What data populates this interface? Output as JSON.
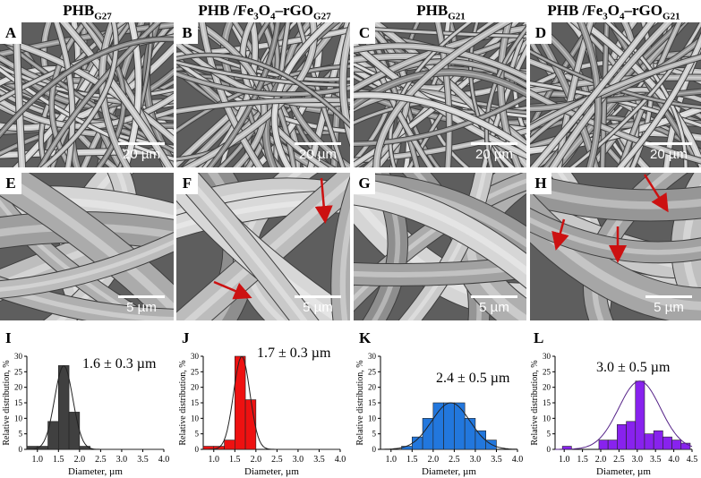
{
  "columns": [
    {
      "base": "PHB",
      "composite": "",
      "sub": "G27"
    },
    {
      "base": "PHB /Fe",
      "composite": "3",
      "mid": "O",
      "sub2": "4",
      "tail": "–rGO",
      "sub": "G27"
    },
    {
      "base": "PHB",
      "composite": "",
      "sub": "G21"
    },
    {
      "base": "PHB /Fe",
      "composite": "3",
      "mid": "O",
      "sub2": "4",
      "tail": "–rGO",
      "sub": "G21"
    }
  ],
  "sem_top": [
    {
      "letter": "A",
      "scale": "20 µm"
    },
    {
      "letter": "B",
      "scale": "20 µm"
    },
    {
      "letter": "C",
      "scale": "20 µm"
    },
    {
      "letter": "D",
      "scale": "20 µm"
    }
  ],
  "sem_bottom": [
    {
      "letter": "E",
      "scale": "5 µm"
    },
    {
      "letter": "F",
      "scale": "5 µm"
    },
    {
      "letter": "G",
      "scale": "5 µm"
    },
    {
      "letter": "H",
      "scale": "5 µm"
    }
  ],
  "colors": {
    "I": "#404040",
    "J": "#ee1111",
    "K": "#2277dd",
    "L": "#8822ee",
    "arrow": "#cc1111"
  },
  "chart_data": [
    {
      "type": "bar",
      "letter": "I",
      "annotation": "1.6 ± 0.3 µm",
      "xlabel": "Diameter, µm",
      "ylabel": "Relative distribution, %",
      "bin_width": 0.25,
      "x": [
        0.75,
        1.0,
        1.25,
        1.5,
        1.75,
        2.0,
        2.25
      ],
      "values": [
        1,
        1,
        9,
        27,
        12,
        1,
        0
      ],
      "xticks": [
        "1.0",
        "1.5",
        "2.0",
        "2.5",
        "3.0",
        "3.5",
        "4.0"
      ],
      "xlim": [
        0.75,
        4.0
      ],
      "ylim": [
        0,
        30
      ],
      "yticks": [
        "0",
        "5",
        "10",
        "15",
        "20",
        "25",
        "30"
      ]
    },
    {
      "type": "bar",
      "letter": "J",
      "annotation": "1.7 ± 0.3 µm",
      "xlabel": "Diameter, µm",
      "ylabel": "Relative distribution, %",
      "bin_width": 0.25,
      "x": [
        0.75,
        1.0,
        1.25,
        1.5,
        1.75,
        2.0
      ],
      "values": [
        1,
        1,
        3,
        30,
        16,
        0
      ],
      "xticks": [
        "1.0",
        "1.5",
        "2.0",
        "2.5",
        "3.0",
        "3.5",
        "4.0"
      ],
      "xlim": [
        0.75,
        4.0
      ],
      "ylim": [
        0,
        30
      ],
      "yticks": [
        "0",
        "5",
        "10",
        "15",
        "20",
        "25",
        "30"
      ]
    },
    {
      "type": "bar",
      "letter": "K",
      "annotation": "2.4 ± 0.5 µm",
      "xlabel": "Diameter, µm",
      "ylabel": "Relative distribution, %",
      "bin_width": 0.25,
      "x": [
        1.25,
        1.5,
        1.75,
        2.0,
        2.25,
        2.5,
        2.75,
        3.0,
        3.25
      ],
      "values": [
        1,
        4,
        10,
        15,
        15,
        15,
        10,
        6,
        3
      ],
      "xticks": [
        "1.0",
        "1.5",
        "2.0",
        "2.5",
        "3.0",
        "3.5",
        "4.0"
      ],
      "xlim": [
        0.75,
        4.0
      ],
      "ylim": [
        0,
        30
      ],
      "yticks": [
        "0",
        "5",
        "10",
        "15",
        "20",
        "25",
        "30"
      ]
    },
    {
      "type": "bar",
      "letter": "L",
      "annotation": "3.0 ± 0.5 µm",
      "xlabel": "Diameter, µm",
      "ylabel": "Relative distribution, %",
      "bin_width": 0.25,
      "x": [
        0.95,
        1.2,
        1.95,
        2.2,
        2.45,
        2.7,
        2.95,
        3.2,
        3.45,
        3.7,
        3.95,
        4.2
      ],
      "values": [
        1,
        0,
        3,
        3,
        8,
        9,
        22,
        5,
        6,
        4,
        3,
        2
      ],
      "xticks": [
        "1.0",
        "1.5",
        "2.0",
        "2.5",
        "3.0",
        "3.5",
        "4.0",
        "4.5"
      ],
      "xlim": [
        0.75,
        4.5
      ],
      "ylim": [
        0,
        30
      ],
      "yticks": [
        "0",
        "5",
        "10",
        "15",
        "20",
        "25",
        "30"
      ]
    }
  ]
}
